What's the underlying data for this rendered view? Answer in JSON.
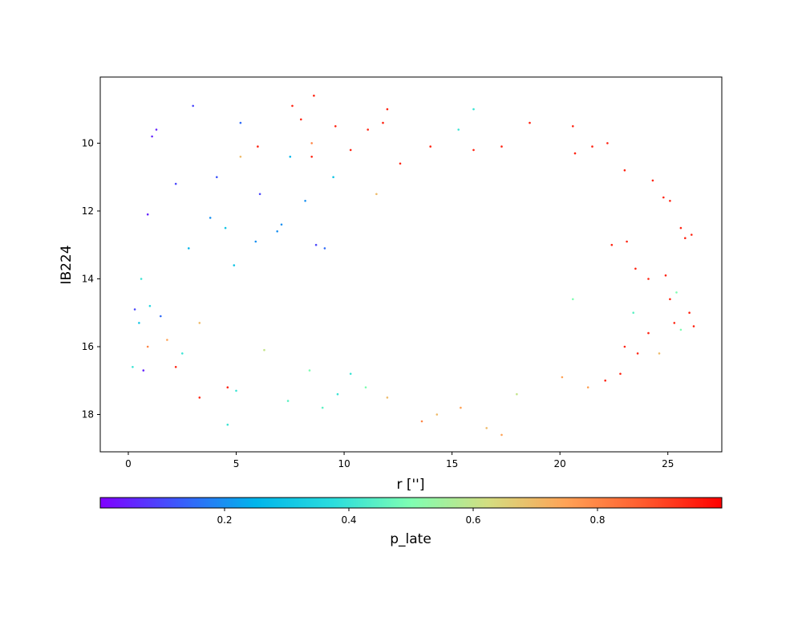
{
  "chart_data": {
    "type": "scatter",
    "title": "",
    "xlabel": "r ['']",
    "ylabel": "IB224",
    "xlim": [
      -1.3,
      27.5
    ],
    "ylim": [
      19.1,
      8.05
    ],
    "y_inverted": true,
    "x_ticks": [
      0,
      5,
      10,
      15,
      20,
      25
    ],
    "y_ticks": [
      10,
      12,
      14,
      16,
      18
    ],
    "grid": false,
    "legend": "none",
    "colorbar": {
      "label": "p_late",
      "orientation": "horizontal",
      "placement": "bottom",
      "colormap": "rainbow",
      "range": [
        0.0,
        1.0
      ],
      "ticks": [
        0.2,
        0.4,
        0.6,
        0.8
      ],
      "colors": [
        "#8000ff",
        "#3c59fb",
        "#00b5eb",
        "#2adddd",
        "#7ffeb2",
        "#d4dd80",
        "#ffa256",
        "#ff5a2d",
        "#ff0000"
      ]
    },
    "series": [
      {
        "points": [
          [
            3.0,
            8.9,
            0.1
          ],
          [
            4.1,
            11.0,
            0.12
          ],
          [
            4.5,
            12.5,
            0.3
          ],
          [
            5.2,
            9.4,
            0.15
          ],
          [
            6.1,
            11.5,
            0.1
          ],
          [
            6.9,
            12.6,
            0.2
          ],
          [
            7.5,
            10.4,
            0.25
          ],
          [
            8.2,
            11.7,
            0.2
          ],
          [
            9.1,
            13.1,
            0.15
          ],
          [
            9.5,
            11.0,
            0.3
          ],
          [
            3.8,
            12.2,
            0.2
          ],
          [
            1.1,
            9.8,
            0.05
          ],
          [
            1.3,
            9.6,
            0.05
          ],
          [
            0.9,
            12.1,
            0.05
          ],
          [
            2.2,
            11.2,
            0.1
          ],
          [
            4.9,
            13.6,
            0.3
          ],
          [
            5.9,
            12.9,
            0.2
          ],
          [
            8.7,
            13.0,
            0.1
          ],
          [
            7.1,
            12.4,
            0.2
          ],
          [
            2.8,
            13.1,
            0.25
          ],
          [
            0.3,
            14.9,
            0.1
          ],
          [
            0.5,
            15.3,
            0.3
          ],
          [
            0.7,
            16.7,
            0.05
          ],
          [
            1.5,
            15.1,
            0.15
          ],
          [
            0.2,
            16.6,
            0.4
          ],
          [
            0.6,
            14.0,
            0.4
          ],
          [
            1.0,
            14.8,
            0.35
          ],
          [
            2.5,
            16.2,
            0.4
          ],
          [
            4.6,
            18.3,
            0.4
          ],
          [
            5.0,
            17.3,
            0.4
          ],
          [
            7.4,
            17.6,
            0.45
          ],
          [
            8.4,
            16.7,
            0.5
          ],
          [
            9.0,
            17.8,
            0.45
          ],
          [
            9.7,
            17.4,
            0.4
          ],
          [
            10.3,
            16.8,
            0.4
          ],
          [
            11.0,
            17.2,
            0.5
          ],
          [
            15.3,
            9.6,
            0.4
          ],
          [
            16.0,
            9.0,
            0.4
          ],
          [
            18.0,
            17.4,
            0.6
          ],
          [
            16.6,
            18.4,
            0.7
          ],
          [
            14.3,
            18.0,
            0.7
          ],
          [
            15.4,
            17.8,
            0.75
          ],
          [
            13.6,
            18.2,
            0.8
          ],
          [
            12.0,
            17.5,
            0.7
          ],
          [
            20.1,
            16.9,
            0.75
          ],
          [
            21.3,
            17.2,
            0.75
          ],
          [
            24.6,
            16.2,
            0.7
          ],
          [
            25.6,
            15.5,
            0.5
          ],
          [
            25.4,
            14.4,
            0.5
          ],
          [
            23.4,
            15.0,
            0.45
          ],
          [
            20.6,
            14.6,
            0.5
          ],
          [
            17.3,
            18.6,
            0.75
          ],
          [
            6.3,
            16.1,
            0.6
          ],
          [
            3.3,
            15.3,
            0.7
          ],
          [
            1.8,
            15.8,
            0.75
          ],
          [
            0.9,
            16.0,
            0.8
          ],
          [
            8.5,
            10.0,
            0.8
          ],
          [
            5.2,
            10.4,
            0.7
          ],
          [
            11.5,
            11.5,
            0.7
          ],
          [
            8.6,
            8.6,
            0.95
          ],
          [
            7.6,
            8.9,
            0.95
          ],
          [
            8.0,
            9.3,
            0.95
          ],
          [
            12.0,
            9.0,
            0.95
          ],
          [
            11.8,
            9.4,
            0.95
          ],
          [
            9.6,
            9.5,
            0.95
          ],
          [
            11.1,
            9.6,
            0.95
          ],
          [
            18.6,
            9.4,
            0.95
          ],
          [
            20.6,
            9.5,
            0.95
          ],
          [
            22.2,
            10.0,
            0.95
          ],
          [
            21.5,
            10.1,
            0.95
          ],
          [
            17.3,
            10.1,
            0.95
          ],
          [
            16.0,
            10.2,
            0.95
          ],
          [
            6.0,
            10.1,
            0.95
          ],
          [
            8.5,
            10.4,
            0.95
          ],
          [
            10.3,
            10.2,
            0.95
          ],
          [
            14.0,
            10.1,
            0.95
          ],
          [
            12.6,
            10.6,
            0.95
          ],
          [
            20.7,
            10.3,
            0.95
          ],
          [
            24.3,
            11.1,
            0.95
          ],
          [
            23.0,
            10.8,
            0.95
          ],
          [
            25.1,
            11.7,
            0.95
          ],
          [
            24.8,
            11.6,
            0.95
          ],
          [
            25.6,
            12.5,
            0.95
          ],
          [
            26.1,
            12.7,
            0.95
          ],
          [
            25.8,
            12.8,
            0.95
          ],
          [
            25.1,
            14.6,
            0.95
          ],
          [
            26.0,
            15.0,
            0.95
          ],
          [
            26.2,
            15.4,
            0.95
          ],
          [
            25.3,
            15.3,
            0.95
          ],
          [
            24.1,
            14.0,
            0.95
          ],
          [
            24.9,
            13.9,
            0.95
          ],
          [
            23.5,
            13.7,
            0.95
          ],
          [
            23.1,
            12.9,
            0.95
          ],
          [
            22.4,
            13.0,
            0.95
          ],
          [
            23.0,
            16.0,
            0.95
          ],
          [
            23.6,
            16.2,
            0.95
          ],
          [
            24.1,
            15.6,
            0.95
          ],
          [
            22.8,
            16.8,
            0.95
          ],
          [
            22.1,
            17.0,
            0.95
          ],
          [
            3.3,
            17.5,
            0.95
          ],
          [
            4.6,
            17.2,
            0.95
          ],
          [
            2.2,
            16.6,
            0.95
          ]
        ]
      }
    ]
  }
}
